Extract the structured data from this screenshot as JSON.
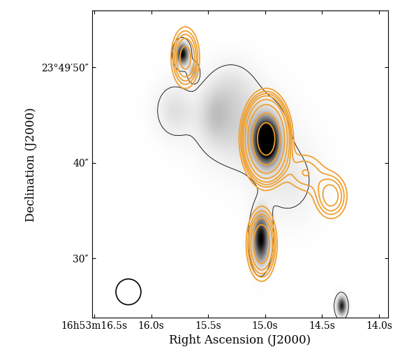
{
  "chart_data": {
    "type": "contour",
    "xlabel": "Right Ascension (J2000)",
    "ylabel": "Declination (J2000)",
    "xlim": [
      16.52,
      13.92
    ],
    "ylim": [
      23.8,
      55.9
    ],
    "xticks": [
      {
        "value": 16.5,
        "label": "16h53m16.5s"
      },
      {
        "value": 16.0,
        "label": "16.0s"
      },
      {
        "value": 15.5,
        "label": "15.5s"
      },
      {
        "value": 15.0,
        "label": "15.0s"
      },
      {
        "value": 14.5,
        "label": "14.5s"
      },
      {
        "value": 14.0,
        "label": "14.0s"
      }
    ],
    "yticks": [
      {
        "value": 50,
        "label": "23°49′50″"
      },
      {
        "value": 40,
        "label": "40″"
      },
      {
        "value": 30,
        "label": "30″"
      }
    ],
    "image": {
      "vmin": 0,
      "vmax": 1.0,
      "levels": [
        0.1
      ],
      "color": "#000000",
      "components": [
        {
          "ra": 15.73,
          "dec": 51.4,
          "amplitude": 1.0,
          "sigma_ra": 0.04,
          "sigma_dec": 0.8
        },
        {
          "ra": 15.63,
          "dec": 49.6,
          "amplitude": 0.4,
          "sigma_ra": 0.03,
          "sigma_dec": 0.6
        },
        {
          "ra": 14.99,
          "dec": 42.3,
          "amplitude": 1.5,
          "sigma_ra": 0.07,
          "sigma_dec": 1.5
        },
        {
          "ra": 15.04,
          "dec": 32.0,
          "amplitude": 1.0,
          "sigma_ra": 0.05,
          "sigma_dec": 1.8
        },
        {
          "ra": 14.33,
          "dec": 25.0,
          "amplitude": 0.9,
          "sigma_ra": 0.03,
          "sigma_dec": 0.7
        },
        {
          "ra": 15.2,
          "dec": 43.5,
          "amplitude": 0.25,
          "sigma_ra": 0.25,
          "sigma_dec": 3.0
        },
        {
          "ra": 15.8,
          "dec": 45.5,
          "amplitude": 0.2,
          "sigma_ra": 0.12,
          "sigma_dec": 2.0
        },
        {
          "ra": 15.45,
          "dec": 45.0,
          "amplitude": 0.2,
          "sigma_ra": 0.1,
          "sigma_dec": 2.0
        },
        {
          "ra": 14.8,
          "dec": 38.0,
          "amplitude": 0.15,
          "sigma_ra": 0.2,
          "sigma_dec": 3.0
        },
        {
          "ra": 15.3,
          "dec": 48.0,
          "amplitude": 0.15,
          "sigma_ra": 0.15,
          "sigma_dec": 2.0
        }
      ]
    },
    "contours": {
      "color": "#f0a030",
      "levels": [
        0.3,
        0.45,
        0.6,
        0.8,
        1.2,
        2,
        4,
        7
      ],
      "components": [
        {
          "ra": 14.99,
          "dec": 42.5,
          "amplitude": 10,
          "sigma_ra": 0.09,
          "sigma_dec": 2.0
        },
        {
          "ra": 14.42,
          "dec": 36.5,
          "amplitude": 1.0,
          "sigma_ra": 0.09,
          "sigma_dec": 1.5
        },
        {
          "ra": 14.65,
          "dec": 39.0,
          "amplitude": 0.6,
          "sigma_ra": 0.12,
          "sigma_dec": 1.5
        },
        {
          "ra": 15.03,
          "dec": 31.5,
          "amplitude": 2.0,
          "sigma_ra": 0.07,
          "sigma_dec": 2.0
        },
        {
          "ra": 15.7,
          "dec": 51.0,
          "amplitude": 1.5,
          "sigma_ra": 0.07,
          "sigma_dec": 1.8
        }
      ]
    },
    "beam": {
      "ra": 16.2,
      "dec": 26.5,
      "diameter_ra": 0.22,
      "diameter_dec": 2.7
    }
  }
}
